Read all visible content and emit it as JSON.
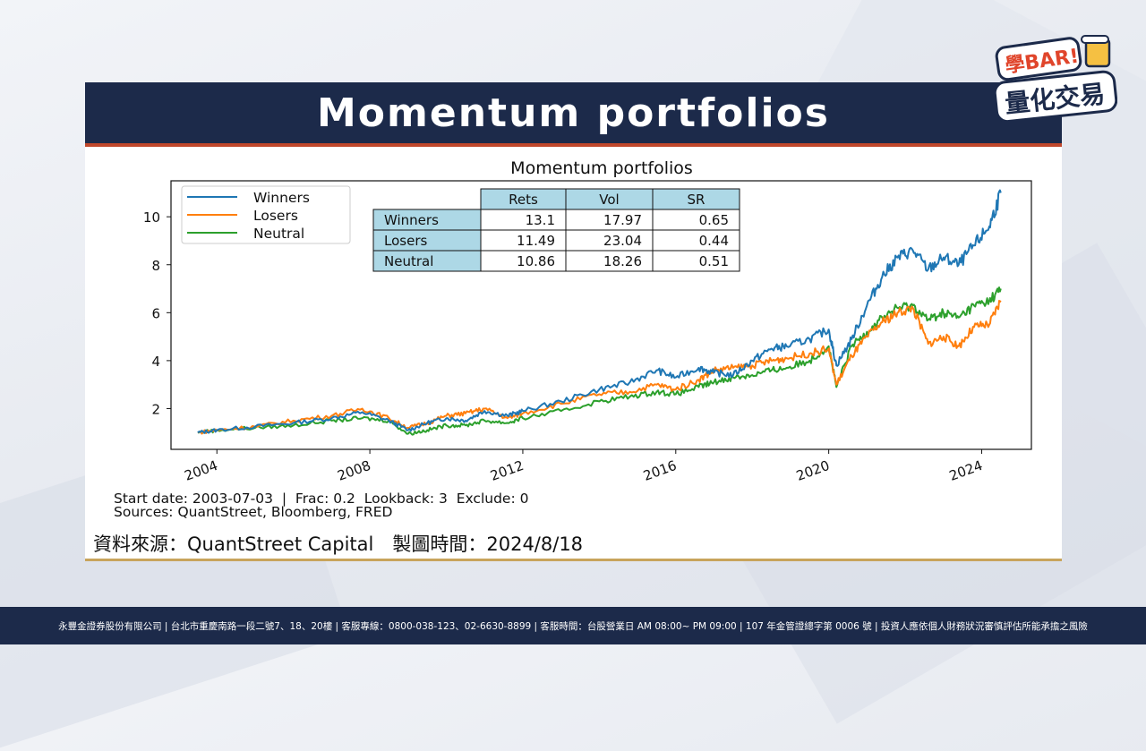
{
  "slide": {
    "title": "Momentum portfolios",
    "source_line": "資料來源：QuantStreet Capital　製圖時間：2024/8/18",
    "logo_text_top": "學BAR!",
    "logo_text_bottom": "量化交易",
    "footer": "永豐金證券股份有限公司 | 台北市重慶南路一段二號7、18、20樓 | 客服專線：0800-038-123、02-6630-8899 | 客服時間：台股營業日 AM 08:00~ PM 09:00 | 107 年金管證總字第 0006 號 | 投資人應依個人財務狀況審慎評估所能承擔之風險"
  },
  "colors": {
    "header_bg": "#1c2a4a",
    "header_underline": "#c0472b",
    "winners": "#1f77b4",
    "losers": "#ff7f0e",
    "neutral": "#2ca02c",
    "table_header_bg": "#add8e6"
  },
  "chart_data": {
    "type": "line",
    "title": "Momentum portfolios",
    "xlabel": "",
    "ylabel": "",
    "xlim": [
      2002.8,
      2025.3
    ],
    "ylim": [
      0.3,
      11.5
    ],
    "xticks": [
      "2004",
      "2008",
      "2012",
      "2016",
      "2020",
      "2024"
    ],
    "yticks": [
      "2",
      "4",
      "6",
      "8",
      "10"
    ],
    "legend_position": "top-left",
    "series": [
      {
        "name": "Winners",
        "points": [
          [
            2003.5,
            1.0
          ],
          [
            2004.0,
            1.1
          ],
          [
            2005.0,
            1.25
          ],
          [
            2006.0,
            1.4
          ],
          [
            2007.0,
            1.6
          ],
          [
            2007.8,
            1.85
          ],
          [
            2008.5,
            1.5
          ],
          [
            2009.0,
            1.1
          ],
          [
            2009.5,
            1.4
          ],
          [
            2010.0,
            1.6
          ],
          [
            2010.5,
            1.5
          ],
          [
            2011.0,
            1.9
          ],
          [
            2011.6,
            1.7
          ],
          [
            2012.0,
            1.9
          ],
          [
            2013.0,
            2.3
          ],
          [
            2014.0,
            2.8
          ],
          [
            2014.8,
            3.1
          ],
          [
            2015.5,
            3.6
          ],
          [
            2016.0,
            3.3
          ],
          [
            2016.6,
            3.7
          ],
          [
            2017.0,
            3.5
          ],
          [
            2017.5,
            3.4
          ],
          [
            2018.0,
            4.0
          ],
          [
            2018.5,
            4.5
          ],
          [
            2018.9,
            4.6
          ],
          [
            2019.5,
            4.9
          ],
          [
            2020.0,
            5.3
          ],
          [
            2020.2,
            3.8
          ],
          [
            2020.6,
            4.9
          ],
          [
            2021.0,
            6.3
          ],
          [
            2021.4,
            7.5
          ],
          [
            2021.8,
            8.3
          ],
          [
            2022.2,
            8.6
          ],
          [
            2022.6,
            7.8
          ],
          [
            2023.0,
            8.3
          ],
          [
            2023.4,
            8.0
          ],
          [
            2023.8,
            8.8
          ],
          [
            2024.2,
            9.6
          ],
          [
            2024.5,
            11.0
          ]
        ]
      },
      {
        "name": "Losers",
        "points": [
          [
            2003.5,
            1.0
          ],
          [
            2004.0,
            1.1
          ],
          [
            2005.0,
            1.25
          ],
          [
            2006.0,
            1.5
          ],
          [
            2007.0,
            1.7
          ],
          [
            2007.8,
            2.0
          ],
          [
            2008.5,
            1.6
          ],
          [
            2009.0,
            1.2
          ],
          [
            2009.5,
            1.4
          ],
          [
            2010.0,
            1.7
          ],
          [
            2010.5,
            1.8
          ],
          [
            2011.0,
            2.0
          ],
          [
            2011.6,
            1.6
          ],
          [
            2012.0,
            1.8
          ],
          [
            2013.0,
            2.2
          ],
          [
            2014.0,
            2.6
          ],
          [
            2014.8,
            2.7
          ],
          [
            2015.5,
            3.0
          ],
          [
            2016.0,
            2.8
          ],
          [
            2016.6,
            3.2
          ],
          [
            2017.0,
            3.6
          ],
          [
            2017.5,
            3.7
          ],
          [
            2018.0,
            3.8
          ],
          [
            2018.5,
            4.0
          ],
          [
            2018.9,
            4.1
          ],
          [
            2019.5,
            4.3
          ],
          [
            2020.0,
            4.5
          ],
          [
            2020.2,
            3.0
          ],
          [
            2020.6,
            4.2
          ],
          [
            2021.0,
            5.0
          ],
          [
            2021.4,
            5.6
          ],
          [
            2021.8,
            6.0
          ],
          [
            2022.2,
            6.2
          ],
          [
            2022.6,
            4.7
          ],
          [
            2023.0,
            5.0
          ],
          [
            2023.4,
            4.6
          ],
          [
            2023.8,
            5.4
          ],
          [
            2024.2,
            5.5
          ],
          [
            2024.5,
            6.5
          ]
        ]
      },
      {
        "name": "Neutral",
        "points": [
          [
            2003.5,
            1.0
          ],
          [
            2004.0,
            1.1
          ],
          [
            2005.0,
            1.2
          ],
          [
            2006.0,
            1.3
          ],
          [
            2007.0,
            1.5
          ],
          [
            2007.8,
            1.6
          ],
          [
            2008.5,
            1.5
          ],
          [
            2009.0,
            0.95
          ],
          [
            2009.5,
            1.1
          ],
          [
            2010.0,
            1.3
          ],
          [
            2010.5,
            1.3
          ],
          [
            2011.0,
            1.5
          ],
          [
            2011.6,
            1.4
          ],
          [
            2012.0,
            1.6
          ],
          [
            2013.0,
            1.9
          ],
          [
            2014.0,
            2.3
          ],
          [
            2014.8,
            2.5
          ],
          [
            2015.5,
            2.7
          ],
          [
            2016.0,
            2.6
          ],
          [
            2016.6,
            2.9
          ],
          [
            2017.0,
            3.1
          ],
          [
            2017.5,
            3.3
          ],
          [
            2018.0,
            3.4
          ],
          [
            2018.5,
            3.6
          ],
          [
            2018.9,
            3.7
          ],
          [
            2019.5,
            4.0
          ],
          [
            2020.0,
            4.6
          ],
          [
            2020.2,
            2.9
          ],
          [
            2020.6,
            4.6
          ],
          [
            2021.0,
            5.2
          ],
          [
            2021.4,
            5.8
          ],
          [
            2021.8,
            6.2
          ],
          [
            2022.2,
            6.3
          ],
          [
            2022.6,
            5.7
          ],
          [
            2023.0,
            6.0
          ],
          [
            2023.4,
            5.8
          ],
          [
            2023.8,
            6.3
          ],
          [
            2024.2,
            6.5
          ],
          [
            2024.5,
            7.0
          ]
        ]
      }
    ],
    "table": {
      "columns": [
        "",
        "Rets",
        "Vol",
        "SR"
      ],
      "rows": [
        [
          "Winners",
          "13.1",
          "17.97",
          "0.65"
        ],
        [
          "Losers",
          "11.49",
          "23.04",
          "0.44"
        ],
        [
          "Neutral",
          "10.86",
          "18.26",
          "0.51"
        ]
      ]
    },
    "annotations": [
      "Start date: 2003-07-03  |  Frac: 0.2  Lookback: 3  Exclude: 0",
      "Sources: QuantStreet, Bloomberg, FRED"
    ]
  }
}
